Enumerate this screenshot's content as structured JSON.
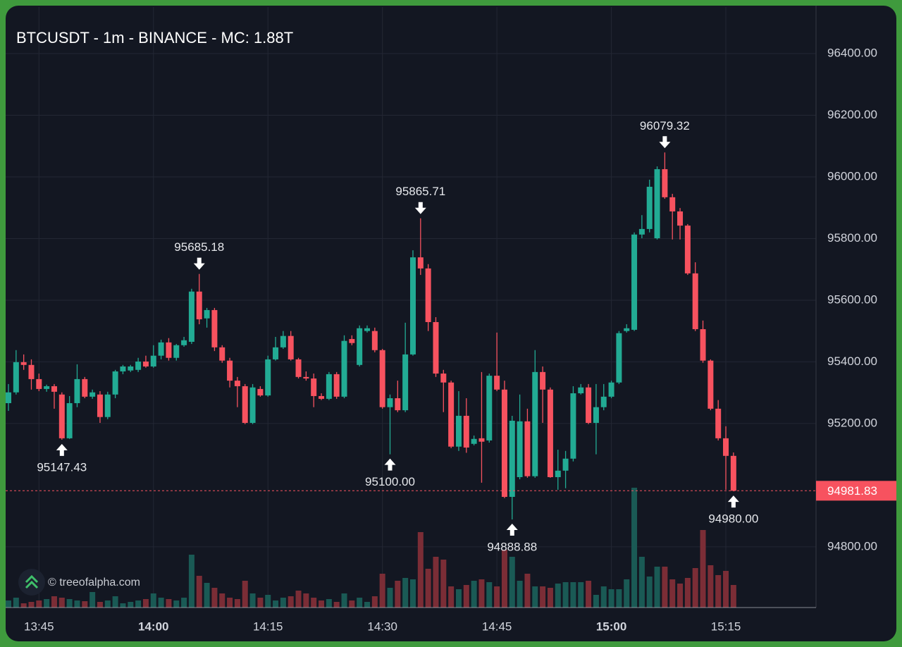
{
  "chart_data": {
    "type": "candlestick",
    "title": "BTCUSDT - 1m - BINANCE - MC: 1.88T",
    "watermark": "© treeofalpha.com",
    "x": [
      "13:41",
      "13:42",
      "13:43",
      "13:44",
      "13:45",
      "13:46",
      "13:47",
      "13:48",
      "13:49",
      "13:50",
      "13:51",
      "13:52",
      "13:53",
      "13:54",
      "13:55",
      "13:56",
      "13:57",
      "13:58",
      "13:59",
      "14:00",
      "14:01",
      "14:02",
      "14:03",
      "14:04",
      "14:05",
      "14:06",
      "14:07",
      "14:08",
      "14:09",
      "14:10",
      "14:11",
      "14:12",
      "14:13",
      "14:14",
      "14:15",
      "14:16",
      "14:17",
      "14:18",
      "14:19",
      "14:20",
      "14:21",
      "14:22",
      "14:23",
      "14:24",
      "14:25",
      "14:26",
      "14:27",
      "14:28",
      "14:29",
      "14:30",
      "14:31",
      "14:32",
      "14:33",
      "14:34",
      "14:35",
      "14:36",
      "14:37",
      "14:38",
      "14:39",
      "14:40",
      "14:41",
      "14:42",
      "14:43",
      "14:44",
      "14:45",
      "14:46",
      "14:47",
      "14:48",
      "14:49",
      "14:50",
      "14:51",
      "14:52",
      "14:53",
      "14:54",
      "14:55",
      "14:56",
      "14:57",
      "14:58",
      "14:59",
      "15:00",
      "15:01",
      "15:02",
      "15:03",
      "15:04",
      "15:05",
      "15:06",
      "15:07",
      "15:08",
      "15:09",
      "15:10",
      "15:11",
      "15:12",
      "15:13",
      "15:14",
      "15:15",
      "15:16"
    ],
    "open": [
      95266,
      95301,
      95399,
      95390,
      95344,
      95312,
      95321,
      95294,
      95152,
      95266,
      95344,
      95287,
      95294,
      95221,
      95294,
      95369,
      95372,
      95374,
      95401,
      95385,
      95420,
      95463,
      95413,
      95454,
      95465,
      95628,
      95541,
      95568,
      95447,
      95404,
      95339,
      95321,
      95202,
      95312,
      95291,
      95408,
      95447,
      95484,
      95408,
      95351,
      95346,
      95289,
      95280,
      95360,
      95287,
      95474,
      95390,
      95500,
      95500,
      95438,
      95253,
      95282,
      95243,
      95424,
      95739,
      95703,
      95529,
      95362,
      95333,
      95125,
      95225,
      95134,
      95152,
      95145,
      95355,
      95310,
      94962,
      95026,
      95207,
      95029,
      95367,
      95310,
      95026,
      95047,
      95086,
      95298,
      95317,
      95202,
      95253,
      95287,
      95333,
      95500,
      95504,
      95813,
      95831,
      95801,
      96025,
      95934,
      95888,
      95842,
      95687,
      95506,
      95404,
      95248,
      95152,
      95095
    ],
    "high": [
      95328,
      95438,
      95424,
      95408,
      95362,
      95326,
      95328,
      95301,
      95289,
      95392,
      95351,
      95310,
      95305,
      95303,
      95374,
      95390,
      95390,
      95413,
      95420,
      95454,
      95472,
      95477,
      95458,
      95481,
      95637,
      95685.18,
      95575,
      95575,
      95454,
      95413,
      95351,
      95328,
      95328,
      95321,
      95420,
      95481,
      95500,
      95500,
      95413,
      95369,
      95362,
      95298,
      95367,
      95367,
      95486,
      95486,
      95518,
      95518,
      95511,
      95442,
      95294,
      95339,
      95527,
      95762,
      95865.71,
      95717,
      95545,
      95374,
      95339,
      95305,
      95282,
      95161,
      95367,
      95362,
      95495,
      95339,
      95225,
      95294,
      95248,
      95438,
      95385,
      95317,
      95115,
      95111,
      95321,
      95328,
      95328,
      95328,
      95328,
      95339,
      95500,
      95522,
      95820,
      95876,
      95991,
      96034,
      96079.32,
      95945,
      95899,
      95847,
      95723,
      95534,
      95408,
      95276,
      95191,
      95106
    ],
    "low": [
      95241,
      95294,
      95374,
      95310,
      95305,
      95303,
      95248,
      95147.43,
      95150,
      95253,
      95282,
      95280,
      95202,
      95214,
      95282,
      95360,
      95367,
      95367,
      95381,
      95381,
      95408,
      95404,
      95404,
      95449,
      95458,
      95522,
      95511,
      95435,
      95397,
      95317,
      95253,
      95198,
      95198,
      95287,
      95287,
      95404,
      95442,
      95404,
      95346,
      95339,
      95253,
      95276,
      95276,
      95280,
      95282,
      95454,
      95385,
      95495,
      95431,
      95248,
      95100,
      95237,
      95237,
      95420,
      95682,
      95500,
      95351,
      95237,
      95120,
      95111,
      95105,
      95129,
      95008,
      95138,
      95305,
      94958,
      94888.88,
      95019,
      95024,
      95024,
      95202,
      95024,
      94985,
      94990,
      95077,
      95294,
      95198,
      95100,
      95243,
      95282,
      95328,
      95495,
      95500,
      95801,
      95820,
      95797,
      95929,
      95797,
      95797,
      95682,
      95500,
      95397,
      95243,
      95145,
      94985,
      94980
    ],
    "close": [
      95301,
      95399,
      95390,
      95344,
      95312,
      95321,
      95303,
      95152,
      95266,
      95344,
      95287,
      95301,
      95221,
      95294,
      95369,
      95385,
      95385,
      95401,
      95385,
      95420,
      95463,
      95413,
      95454,
      95470,
      95628,
      95538,
      95568,
      95447,
      95404,
      95339,
      95321,
      95202,
      95317,
      95291,
      95408,
      95447,
      95484,
      95408,
      95351,
      95346,
      95289,
      95280,
      95360,
      95287,
      95468,
      95461,
      95509,
      95509,
      95438,
      95253,
      95282,
      95243,
      95424,
      95739,
      95703,
      95529,
      95362,
      95333,
      95125,
      95225,
      95122,
      95150,
      95141,
      95355,
      95310,
      94962,
      95209,
      95207,
      95029,
      95367,
      95310,
      95026,
      95047,
      95086,
      95298,
      95317,
      95202,
      95253,
      95287,
      95333,
      95493,
      95509,
      95813,
      95831,
      95968,
      96025,
      95934,
      95888,
      95842,
      95687,
      95506,
      95404,
      95248,
      95152,
      95095,
      94981.83
    ],
    "volume": [
      10,
      14,
      6,
      8,
      10,
      12,
      16,
      14,
      12,
      10,
      9,
      22,
      8,
      10,
      16,
      6,
      8,
      10,
      12,
      20,
      14,
      12,
      10,
      14,
      75,
      45,
      35,
      28,
      20,
      14,
      12,
      38,
      20,
      14,
      18,
      10,
      14,
      16,
      24,
      20,
      14,
      10,
      12,
      8,
      20,
      10,
      14,
      8,
      16,
      48,
      28,
      38,
      42,
      40,
      107,
      55,
      72,
      68,
      30,
      26,
      32,
      38,
      40,
      36,
      30,
      82,
      72,
      38,
      48,
      30,
      30,
      28,
      34,
      36,
      36,
      36,
      38,
      18,
      30,
      26,
      26,
      40,
      170,
      72,
      44,
      58,
      58,
      40,
      34,
      42,
      56,
      110,
      60,
      46,
      52,
      32
    ],
    "up_color": "#22ab94",
    "down_color": "#f7525f",
    "up_volume_color": "#1a5a55",
    "down_volume_color": "#7b2d36",
    "ylim": [
      94603,
      96551
    ],
    "yticks": [
      {
        "value": 94800,
        "label": "94800.00"
      },
      {
        "value": 95200,
        "label": "95200.00"
      },
      {
        "value": 95400,
        "label": "95400.00"
      },
      {
        "value": 95600,
        "label": "95600.00"
      },
      {
        "value": 95800,
        "label": "95800.00"
      },
      {
        "value": 96000,
        "label": "96000.00"
      },
      {
        "value": 96200,
        "label": "96200.00"
      },
      {
        "value": 96400,
        "label": "96400.00"
      }
    ],
    "xticks": [
      "13:45",
      "14:00",
      "14:15",
      "14:30",
      "14:45",
      "15:00",
      "15:15"
    ],
    "xtick_bold": [
      false,
      true,
      false,
      false,
      false,
      true,
      false
    ],
    "grid": true,
    "annotations": [
      {
        "x": "13:48",
        "value": 95147.43,
        "label": "95147.43",
        "position": "below"
      },
      {
        "x": "14:06",
        "value": 95685.18,
        "label": "95685.18",
        "position": "above"
      },
      {
        "x": "14:31",
        "value": 95100,
        "label": "95100.00",
        "position": "below"
      },
      {
        "x": "14:35",
        "value": 95865.71,
        "label": "95865.71",
        "position": "above"
      },
      {
        "x": "14:47",
        "value": 94888.88,
        "label": "94888.88",
        "position": "below"
      },
      {
        "x": "15:07",
        "value": 96079.32,
        "label": "96079.32",
        "position": "above"
      },
      {
        "x": "15:16",
        "value": 94980,
        "label": "94980.00",
        "position": "below"
      }
    ],
    "last_price": {
      "value": 94981.83,
      "label": "94981.83"
    }
  }
}
